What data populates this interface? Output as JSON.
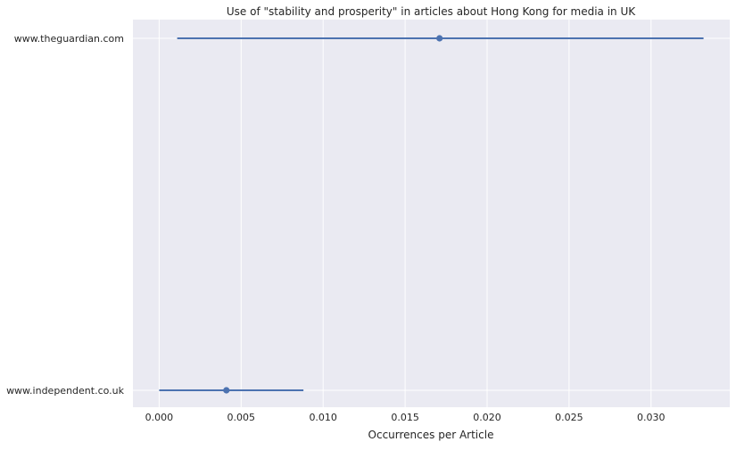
{
  "chart_data": {
    "type": "point-errorbar",
    "title": "Use of \"stability and prosperity\" in articles about Hong Kong for media in UK",
    "xlabel": "Occurrences per Article",
    "ylabel": "",
    "xlim": [
      -0.0016,
      0.0348
    ],
    "xticks": [
      "0.000",
      "0.005",
      "0.010",
      "0.015",
      "0.020",
      "0.025",
      "0.030"
    ],
    "xtick_values": [
      0.0,
      0.005,
      0.01,
      0.015,
      0.02,
      0.025,
      0.03
    ],
    "categories": [
      "www.theguardian.com",
      "www.independent.co.uk"
    ],
    "values": [
      0.0171,
      0.0041
    ],
    "ci_low": [
      0.0011,
      0.0
    ],
    "ci_high": [
      0.0332,
      0.0088
    ],
    "grid": true,
    "colors": {
      "point": "#4c72b0",
      "background": "#eaeaf2",
      "grid": "#ffffff"
    }
  }
}
